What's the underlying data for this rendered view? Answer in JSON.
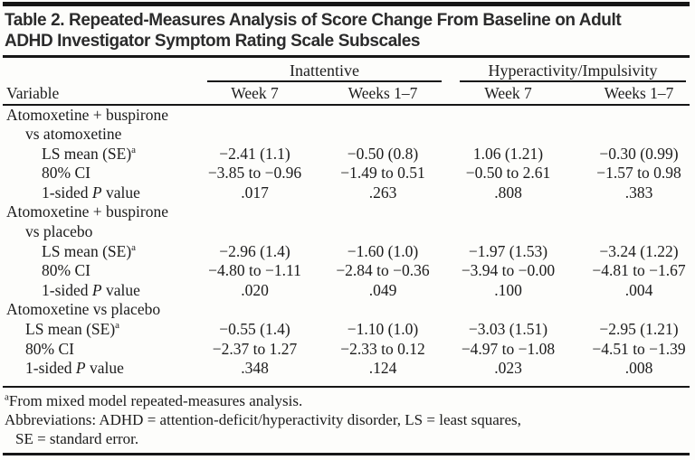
{
  "title": {
    "line1": "Table 2. Repeated-Measures Analysis of Score Change From Baseline on Adult",
    "line2": "ADHD Investigator Symptom Rating Scale Subscales"
  },
  "header": {
    "variable_label": "Variable",
    "groups": [
      "Inattentive",
      "Hyperactivity/Impulsivity"
    ],
    "subheaders": [
      "Week 7",
      "Weeks 1–7",
      "Week 7",
      "Weeks 1–7"
    ]
  },
  "body": {
    "groups": [
      {
        "label_lines": [
          "Atomoxetine + buspirone",
          "vs atomoxetine"
        ],
        "row_indent": 2,
        "rows": [
          {
            "label_parts": [
              {
                "t": "LS mean (SE)"
              },
              {
                "t": "a",
                "sup": true
              }
            ],
            "values": [
              "−2.41 (1.1)",
              "−0.50 (0.8)",
              "1.06 (1.21)",
              "−0.30 (0.99)"
            ]
          },
          {
            "label_parts": [
              {
                "t": "80% CI"
              }
            ],
            "values": [
              "−3.85 to −0.96",
              "−1.49 to 0.51",
              "−0.50 to 2.61",
              "−1.57 to 0.98"
            ]
          },
          {
            "label_parts": [
              {
                "t": "1-sided "
              },
              {
                "t": "P",
                "italic": true
              },
              {
                "t": " value"
              }
            ],
            "values": [
              ".017",
              ".263",
              ".808",
              ".383"
            ]
          }
        ]
      },
      {
        "label_lines": [
          "Atomoxetine + buspirone",
          "vs placebo"
        ],
        "row_indent": 2,
        "rows": [
          {
            "label_parts": [
              {
                "t": "LS mean (SE)"
              },
              {
                "t": "a",
                "sup": true
              }
            ],
            "values": [
              "−2.96 (1.4)",
              "−1.60 (1.0)",
              "−1.97 (1.53)",
              "−3.24 (1.22)"
            ]
          },
          {
            "label_parts": [
              {
                "t": "80% CI"
              }
            ],
            "values": [
              "−4.80 to −1.11",
              "−2.84 to −0.36",
              "−3.94 to −0.00",
              "−4.81 to −1.67"
            ]
          },
          {
            "label_parts": [
              {
                "t": "1-sided "
              },
              {
                "t": "P",
                "italic": true
              },
              {
                "t": " value"
              }
            ],
            "values": [
              ".020",
              ".049",
              ".100",
              ".004"
            ]
          }
        ]
      },
      {
        "label_lines": [
          "Atomoxetine vs placebo"
        ],
        "row_indent": 1,
        "rows": [
          {
            "label_parts": [
              {
                "t": "LS mean (SE)"
              },
              {
                "t": "a",
                "sup": true
              }
            ],
            "values": [
              "−0.55 (1.4)",
              "−1.10 (1.0)",
              "−3.03 (1.51)",
              "−2.95 (1.21)"
            ]
          },
          {
            "label_parts": [
              {
                "t": "80% CI"
              }
            ],
            "values": [
              "−2.37 to 1.27",
              "−2.33 to 0.12",
              "−4.97 to −1.08",
              "−4.51 to −1.39"
            ]
          },
          {
            "label_parts": [
              {
                "t": "1-sided "
              },
              {
                "t": "P",
                "italic": true
              },
              {
                "t": " value"
              }
            ],
            "values": [
              ".348",
              ".124",
              ".023",
              ".008"
            ]
          }
        ]
      }
    ]
  },
  "footnotes": {
    "lines": [
      {
        "indent": 0,
        "parts": [
          {
            "t": "a",
            "sup": true
          },
          {
            "t": "From mixed model repeated-measures analysis."
          }
        ]
      },
      {
        "indent": 0,
        "parts": [
          {
            "t": "Abbreviations: ADHD = attention-deficit/hyperactivity disorder, LS = least squares,"
          }
        ]
      },
      {
        "indent": 1,
        "parts": [
          {
            "t": "SE = standard error."
          }
        ]
      }
    ]
  },
  "colors": {
    "background": "#fdfdfb",
    "text": "#1c1c1c",
    "title_text": "#2b2b2b",
    "rule": "#161616"
  }
}
